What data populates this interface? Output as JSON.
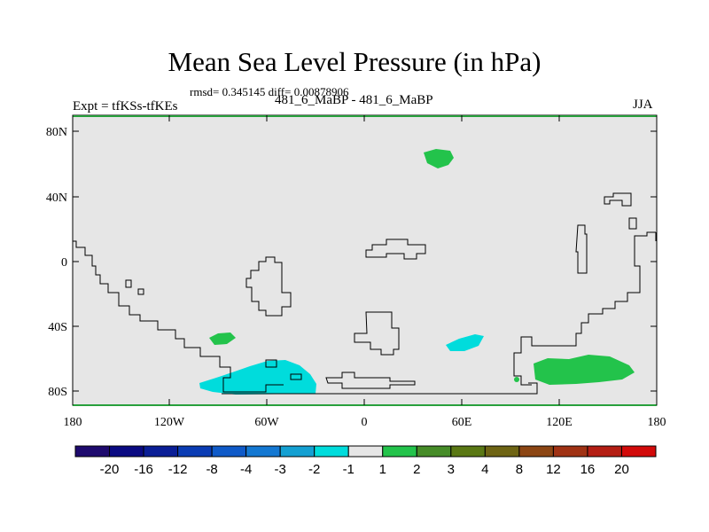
{
  "title": "Mean Sea Level Pressure (in hPa)",
  "stats": "rmsd= 0.345145 diff= 0.00878906",
  "experiment": "Expt = tfKSs-tfKEs",
  "runs": "481_6_MaBP - 481_6_MaBP",
  "season": "JJA",
  "map": {
    "lon_ticks": [
      "180",
      "120W",
      "60W",
      "0",
      "60E",
      "120E",
      "180"
    ],
    "lat_ticks": [
      "80N",
      "40N",
      "0",
      "40S",
      "80S"
    ],
    "background_color": "#e6e6e6",
    "border_color": "#28a03c"
  },
  "colorbar": {
    "colors": [
      "#1e0a6e",
      "#0a0a82",
      "#0a1e96",
      "#0a3cb4",
      "#0f5ac8",
      "#1478d2",
      "#14a0d2",
      "#00dcdc",
      "#e6e6e6",
      "#23c34b",
      "#468c28",
      "#5a7814",
      "#6e6414",
      "#8c4614",
      "#a03214",
      "#b41e14",
      "#d20a0a"
    ],
    "labels": [
      "-20",
      "-16",
      "-12",
      "-8",
      "-4",
      "-3",
      "-2",
      "-1",
      "1",
      "2",
      "3",
      "4",
      "8",
      "12",
      "16",
      "20"
    ]
  },
  "anomalies": [
    {
      "name": "arctic-positive",
      "sign": "positive",
      "color": "#23c34b"
    },
    {
      "name": "south-pacific-positive",
      "sign": "positive",
      "color": "#23c34b"
    },
    {
      "name": "south-pacific-negative",
      "sign": "negative",
      "color": "#00dcdc"
    },
    {
      "name": "indian-ocean-negative",
      "sign": "negative",
      "color": "#00dcdc"
    },
    {
      "name": "southern-ocean-positive",
      "sign": "positive",
      "color": "#23c34b"
    }
  ]
}
